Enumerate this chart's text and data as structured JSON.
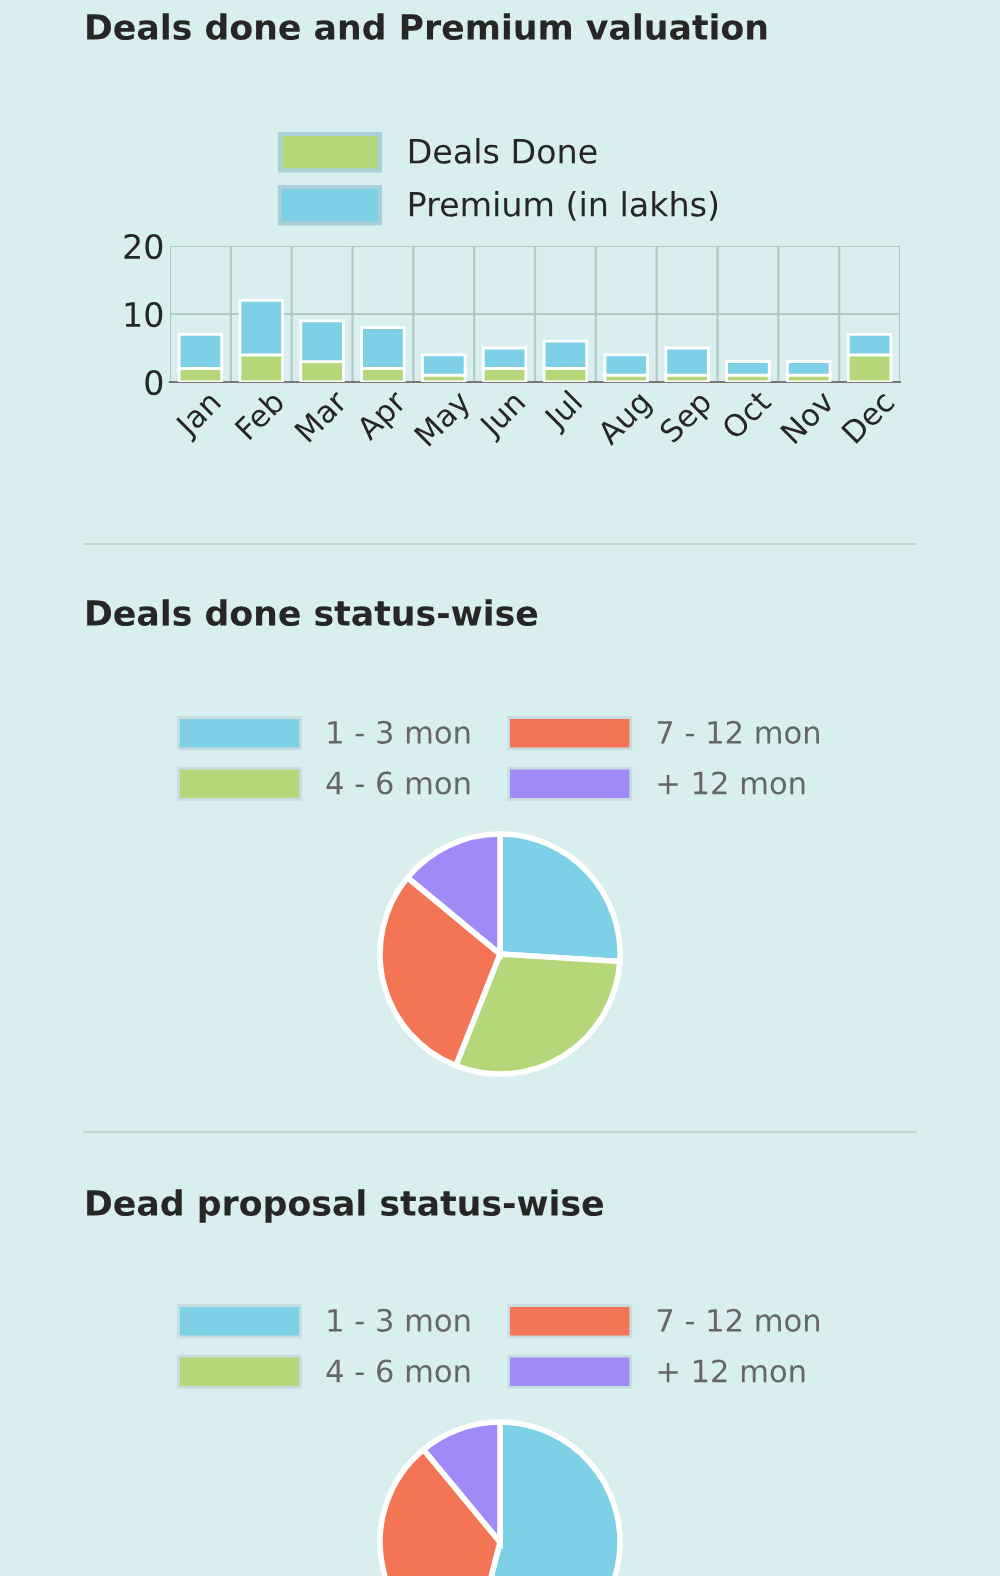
{
  "chart_data": [
    {
      "type": "bar",
      "title": "Deals done and Premium valuation",
      "categories": [
        "Jan",
        "Feb",
        "Mar",
        "Apr",
        "May",
        "Jun",
        "Jul",
        "Aug",
        "Sep",
        "Oct",
        "Nov",
        "Dec"
      ],
      "stacked": true,
      "series": [
        {
          "name": "Deals Done",
          "color": "#b4d77a",
          "values": [
            2,
            4,
            3,
            2,
            1,
            2,
            2,
            1,
            1,
            1,
            1,
            4
          ]
        },
        {
          "name": "Premium (in lakhs)",
          "color": "#7dd0e6",
          "values": [
            5,
            8,
            6,
            6,
            3,
            3,
            4,
            3,
            4,
            2,
            2,
            3
          ]
        }
      ],
      "ylim": [
        0,
        20
      ],
      "yticks": [
        0,
        10,
        20
      ],
      "grid": true,
      "legend": "top"
    },
    {
      "type": "pie",
      "title": "Deals done status-wise",
      "categories": [
        "1 - 3 mon",
        "4 - 6 mon",
        "7 - 12 mon",
        "+ 12 mon"
      ],
      "values": [
        26,
        30,
        30,
        14
      ],
      "colors": [
        "#7dd0e6",
        "#b4d77a",
        "#f47555",
        "#a08af7"
      ],
      "legend": "top"
    },
    {
      "type": "pie",
      "title": "Dead proposal status-wise",
      "categories": [
        "1 - 3 mon",
        "4 - 6 mon",
        "7 - 12 mon",
        "+ 12 mon"
      ],
      "values": [
        54,
        0,
        35,
        11
      ],
      "colors": [
        "#7dd0e6",
        "#b4d77a",
        "#f47555",
        "#a08af7"
      ],
      "legend": "top"
    }
  ]
}
